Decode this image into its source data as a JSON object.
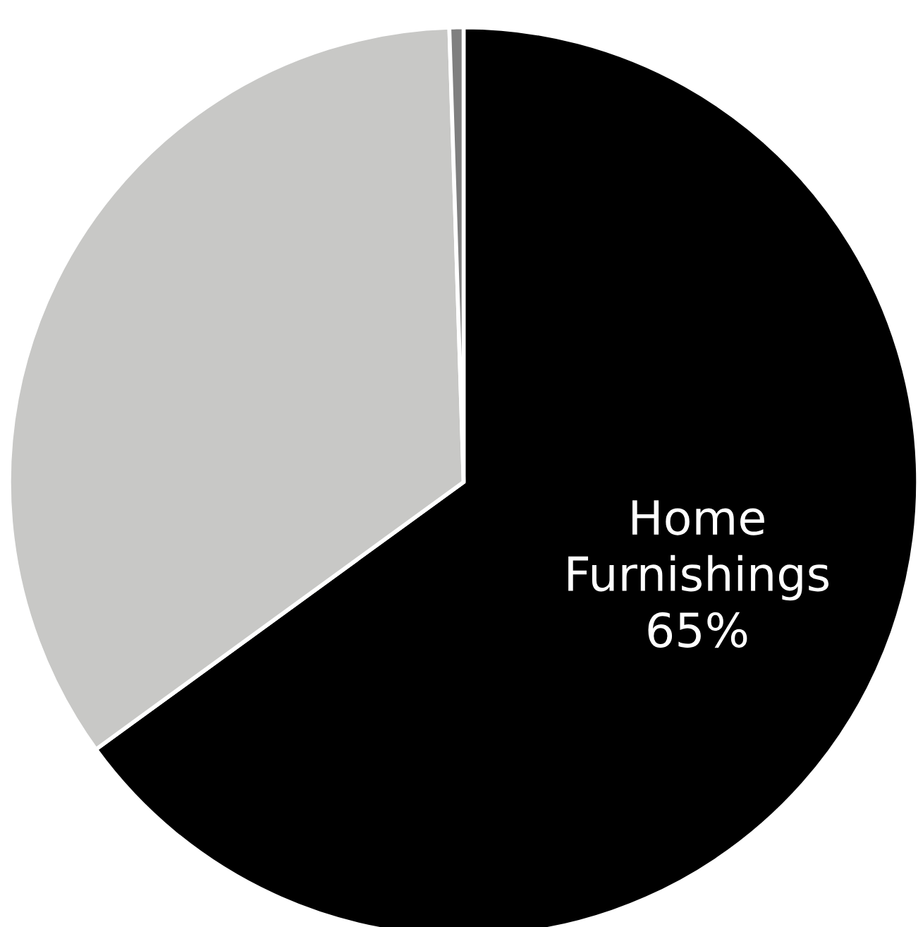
{
  "chart_data": {
    "type": "pie",
    "categories": [
      "Home Furnishings",
      null,
      null
    ],
    "values": [
      65,
      34.5,
      0.5
    ],
    "colors": [
      "#000000",
      "#c8c8c6",
      "#7f7f7f"
    ],
    "value_labels": [
      "65%",
      null,
      null
    ]
  }
}
